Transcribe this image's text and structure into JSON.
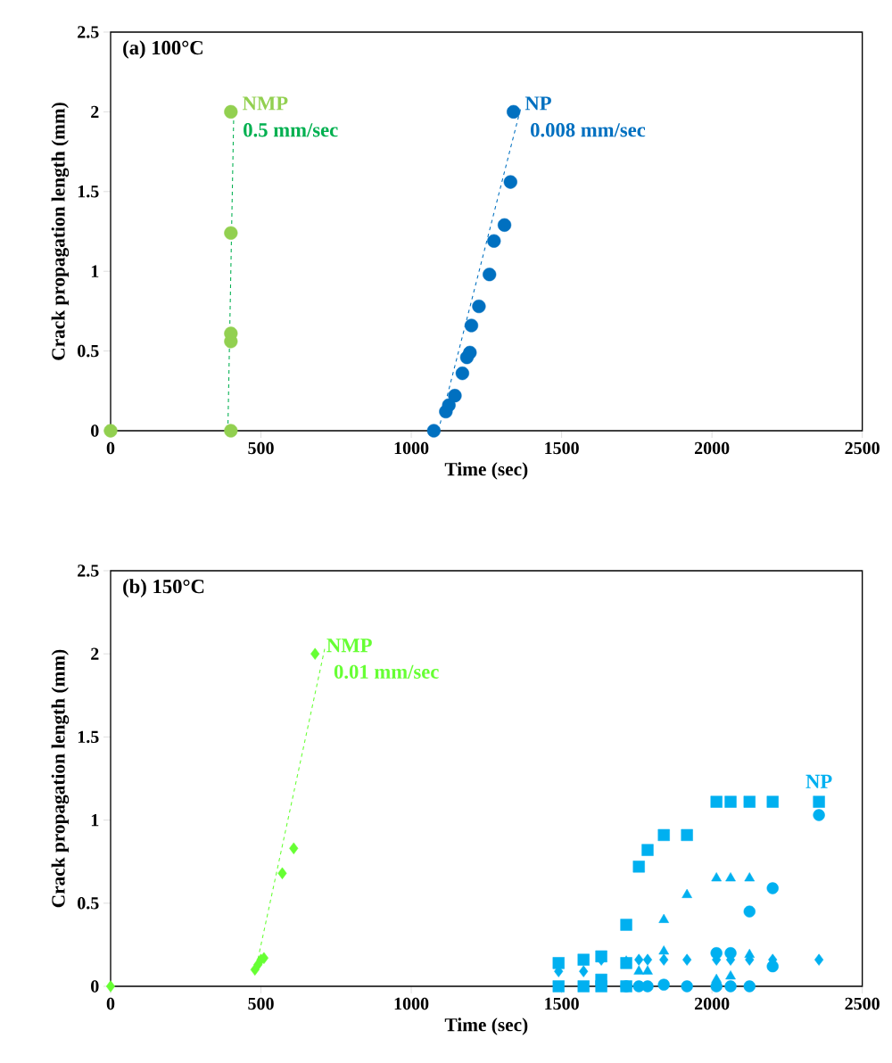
{
  "chart_data": [
    {
      "type": "scatter",
      "title": "(a) 100°C",
      "xlabel": "Time (sec)",
      "ylabel": "Crack propagation length (mm)",
      "xlim": [
        0,
        2500
      ],
      "ylim": [
        0,
        2.5
      ],
      "xticks": [
        0,
        500,
        1000,
        1500,
        2000,
        2500
      ],
      "yticks": [
        0,
        0.5,
        1,
        1.5,
        2,
        2.5
      ],
      "marker": "circle",
      "series": [
        {
          "name": "NMP",
          "color": "#92d050",
          "x": [
            0,
            400,
            400,
            400,
            400,
            400
          ],
          "values": [
            0,
            0,
            0.56,
            0.61,
            1.24,
            2.0
          ]
        },
        {
          "name": "NP",
          "color": "#0070c0",
          "x": [
            1075,
            1115,
            1125,
            1145,
            1170,
            1185,
            1195,
            1200,
            1225,
            1260,
            1275,
            1310,
            1330,
            1340
          ],
          "values": [
            0,
            0.12,
            0.16,
            0.22,
            0.36,
            0.46,
            0.49,
            0.66,
            0.78,
            0.98,
            1.19,
            1.29,
            1.56,
            2.0
          ]
        },
        {
          "name": "0.5 mm/sec",
          "type": "line",
          "marker": "none",
          "line_style": "dashed",
          "color": "#00b050",
          "x": [
            390,
            410
          ],
          "values": [
            0,
            2.03
          ]
        },
        {
          "name": "0.008 mm/sec",
          "type": "line",
          "marker": "none",
          "line_style": "dashed",
          "color": "#0070c0",
          "x": [
            1090,
            1365
          ],
          "values": [
            0,
            2.03
          ]
        }
      ]
    },
    {
      "type": "scatter",
      "title": "(b) 150°C",
      "xlabel": "Time (sec)",
      "ylabel": "Crack propagation length (mm)",
      "xlim": [
        0,
        2500
      ],
      "ylim": [
        0,
        2.5
      ],
      "xticks": [
        0,
        500,
        1000,
        1500,
        2000,
        2500
      ],
      "yticks": [
        0,
        0.5,
        1,
        1.5,
        2,
        2.5
      ],
      "marker": "diamond",
      "series": [
        {
          "name": "NMP",
          "color": "#66ff33",
          "x": [
            0,
            480,
            490,
            500,
            510,
            571,
            609,
            680
          ],
          "values": [
            0,
            0.1,
            0.13,
            0.16,
            0.17,
            0.68,
            0.83,
            2.0
          ]
        },
        {
          "name": "0.01 mm/sec",
          "type": "line",
          "marker": "none",
          "line_style": "dashed",
          "color": "#66ff33",
          "x": [
            480,
            712
          ],
          "values": [
            0.08,
            2.03
          ]
        },
        {
          "name": "NP",
          "color": "#00b0f0",
          "marker": "square",
          "x": [
            1490,
            1490,
            1573,
            1573,
            1632,
            1632,
            1632,
            1715,
            1715,
            1715,
            1757,
            1786,
            1840,
            1917,
            2015,
            2062,
            2125,
            2202,
            2356
          ],
          "values": [
            0.14,
            0,
            0.16,
            0,
            0.18,
            0.04,
            0,
            0.37,
            0.14,
            0,
            0.72,
            0.82,
            0.91,
            0.91,
            1.11,
            1.11,
            1.11,
            1.11,
            1.11
          ]
        },
        {
          "color": "#00b0f0",
          "marker": "triangle",
          "x": [
            1715,
            1757,
            1786,
            1840,
            1840,
            1917,
            2015,
            2015,
            2062,
            2062,
            2125,
            2125
          ],
          "values": [
            0.15,
            0.09,
            0.09,
            0.4,
            0.21,
            0.55,
            0.65,
            0.04,
            0.65,
            0.06,
            0.65,
            0.19
          ]
        },
        {
          "color": "#00b0f0",
          "marker": "diamond",
          "x": [
            1490,
            1573,
            1632,
            1757,
            1786,
            1840,
            1917,
            2015,
            2062,
            2125,
            2202,
            2356
          ],
          "values": [
            0.09,
            0.09,
            0.16,
            0.16,
            0.16,
            0.16,
            0.16,
            0.16,
            0.16,
            0.16,
            0.16,
            0.16
          ]
        },
        {
          "color": "#00b0f0",
          "marker": "circle",
          "x": [
            1715,
            1757,
            1786,
            1840,
            1917,
            2015,
            2015,
            2062,
            2062,
            2125,
            2125,
            2202,
            2202,
            2356
          ],
          "values": [
            0,
            0,
            0,
            0.01,
            0,
            0.2,
            0,
            0.2,
            0,
            0.45,
            0,
            0.59,
            0.12,
            1.03
          ]
        }
      ]
    }
  ]
}
